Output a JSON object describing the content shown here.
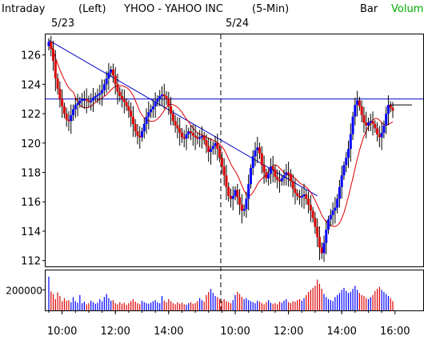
{
  "header": {
    "mode": "Intraday",
    "scale": "(Left)",
    "title": "YHOO - YAHOO INC",
    "interval": "(5-Min)",
    "chart_kind": "Bar",
    "volume_label": "Volum"
  },
  "dates": {
    "first": "5/23",
    "second": "5/24"
  },
  "colors": {
    "up": "#0000ff",
    "down": "#dd0000",
    "ma": "#dd0000",
    "trendline": "#0000cc",
    "volume_label": "#00aa00"
  },
  "chart_data": [
    {
      "type": "candlestick",
      "title": "YHOO - YAHOO INC",
      "ylim": [
        111.6,
        127.4
      ],
      "yticks": [
        112,
        114,
        116,
        118,
        120,
        122,
        124,
        126
      ],
      "x_range": [
        "5/23 9:30",
        "5/24 16:50"
      ],
      "session_break": "5/24",
      "bars_first_day": 78,
      "bars_second_day": 78,
      "close_series": [
        126.9,
        126.4,
        125.6,
        124.4,
        123.7,
        123.0,
        122.5,
        122.0,
        121.6,
        121.5,
        121.9,
        122.3,
        122.6,
        122.7,
        122.9,
        123.0,
        123.0,
        122.9,
        122.8,
        122.9,
        123.1,
        123.2,
        123.3,
        123.4,
        123.6,
        124.0,
        124.4,
        124.8,
        125.0,
        124.6,
        124.0,
        123.5,
        123.2,
        123.0,
        122.8,
        122.5,
        122.2,
        121.8,
        121.3,
        120.8,
        120.5,
        120.4,
        120.8,
        121.3,
        121.8,
        122.1,
        122.3,
        122.5,
        122.8,
        123.0,
        123.2,
        123.3,
        123.2,
        123.0,
        122.5,
        122.0,
        121.5,
        121.2,
        121.0,
        120.7,
        120.4,
        120.3,
        120.6,
        120.8,
        120.7,
        120.5,
        120.4,
        120.3,
        120.4,
        120.5,
        120.2,
        119.8,
        119.4,
        119.6,
        119.8,
        120.0,
        119.6,
        119.0,
        118.4,
        117.8,
        117.0,
        116.4,
        116.2,
        116.4,
        116.8,
        116.3,
        115.8,
        115.4,
        115.5,
        116.2,
        117.2,
        118.3,
        119.1,
        119.5,
        119.7,
        119.3,
        118.5,
        118.0,
        117.6,
        117.9,
        118.4,
        118.2,
        117.7,
        117.5,
        117.4,
        117.6,
        117.8,
        118.0,
        117.9,
        117.4,
        116.9,
        116.6,
        116.4,
        116.3,
        116.4,
        116.5,
        116.2,
        115.8,
        115.4,
        114.9,
        114.3,
        113.6,
        112.9,
        112.5,
        113.2,
        114.1,
        114.8,
        115.1,
        115.4,
        115.6,
        116.2,
        117.0,
        117.8,
        118.5,
        119.0,
        119.6,
        120.6,
        121.8,
        122.6,
        122.9,
        122.5,
        121.9,
        121.4,
        121.2,
        121.4,
        121.5,
        121.3,
        121.0,
        120.6,
        120.4,
        120.7,
        121.2,
        122.0,
        122.6,
        122.4,
        122.2
      ],
      "volume_yticks": [
        200000
      ],
      "volume_ylim": [
        0,
        390000
      ],
      "volume_series": [
        330000,
        185000,
        160000,
        110000,
        175000,
        140000,
        90000,
        120000,
        95000,
        100000,
        80000,
        130000,
        90000,
        75000,
        150000,
        70000,
        85000,
        60000,
        70000,
        95000,
        80000,
        65000,
        75000,
        110000,
        90000,
        130000,
        160000,
        120000,
        95000,
        100000,
        70000,
        60000,
        80000,
        65000,
        75000,
        55000,
        70000,
        90000,
        110000,
        85000,
        70000,
        60000,
        95000,
        80000,
        70000,
        65000,
        75000,
        90000,
        100000,
        80000,
        70000,
        140000,
        95000,
        80000,
        110000,
        90000,
        70000,
        60000,
        80000,
        65000,
        75000,
        60000,
        55000,
        70000,
        80000,
        65000,
        70000,
        90000,
        120000,
        100000,
        85000,
        150000,
        180000,
        210000,
        170000,
        140000,
        130000,
        110000,
        95000,
        110000,
        90000,
        80000,
        70000,
        100000,
        150000,
        180000,
        160000,
        130000,
        110000,
        120000,
        100000,
        90000,
        80000,
        70000,
        95000,
        85000,
        70000,
        60000,
        80000,
        100000,
        75000,
        65000,
        70000,
        60000,
        85000,
        75000,
        95000,
        110000,
        80000,
        70000,
        90000,
        85000,
        100000,
        110000,
        95000,
        120000,
        150000,
        180000,
        200000,
        220000,
        240000,
        300000,
        260000,
        210000,
        160000,
        130000,
        110000,
        100000,
        90000,
        130000,
        150000,
        170000,
        200000,
        220000,
        190000,
        170000,
        180000,
        210000,
        240000,
        200000,
        170000,
        150000,
        140000,
        120000,
        110000,
        130000,
        150000,
        190000,
        210000,
        230000,
        200000,
        180000,
        160000,
        140000,
        120000,
        90000
      ],
      "x_tick_labels": [
        "10:00",
        "12:00",
        "14:00",
        "10:00",
        "12:00",
        "14:00",
        "16:00"
      ]
    }
  ]
}
